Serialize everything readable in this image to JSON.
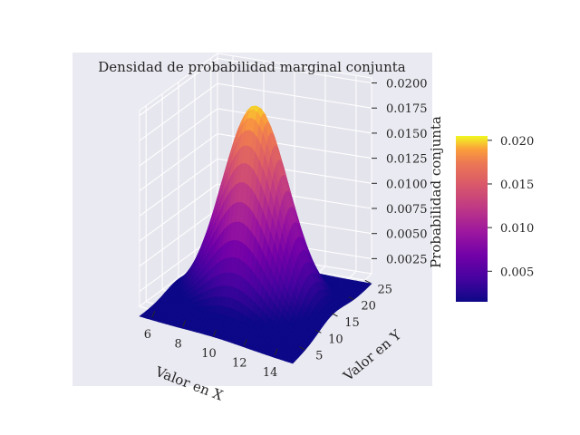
{
  "chart_data": {
    "type": "surface3d",
    "title": "Densidad de probabilidad marginal conjunta",
    "xlabel": "Valor en X",
    "ylabel": "Valor en Y",
    "zlabel": "Probabilidad conjunta",
    "x_range": [
      5,
      15
    ],
    "y_range": [
      3,
      27
    ],
    "z_range": [
      0.001,
      0.0205
    ],
    "x_ticks": [
      "6",
      "8",
      "10",
      "12",
      "14"
    ],
    "y_ticks": [
      "5",
      "10",
      "15",
      "20",
      "25"
    ],
    "z_ticks": [
      "0.0025",
      "0.0050",
      "0.0075",
      "0.0100",
      "0.0125",
      "0.0150",
      "0.0175",
      "0.0200"
    ],
    "surface": {
      "function": "bivariate_normal",
      "x_mean": 10,
      "x_std": 2,
      "y_mean": 15,
      "y_std": 4,
      "peak": 0.0199
    },
    "colormap": "plasma",
    "colorbar": {
      "range": [
        0.0015,
        0.0205
      ],
      "ticks": [
        "0.005",
        "0.010",
        "0.015",
        "0.020"
      ]
    },
    "pane_color": "#eaeaf2",
    "grid": true
  }
}
